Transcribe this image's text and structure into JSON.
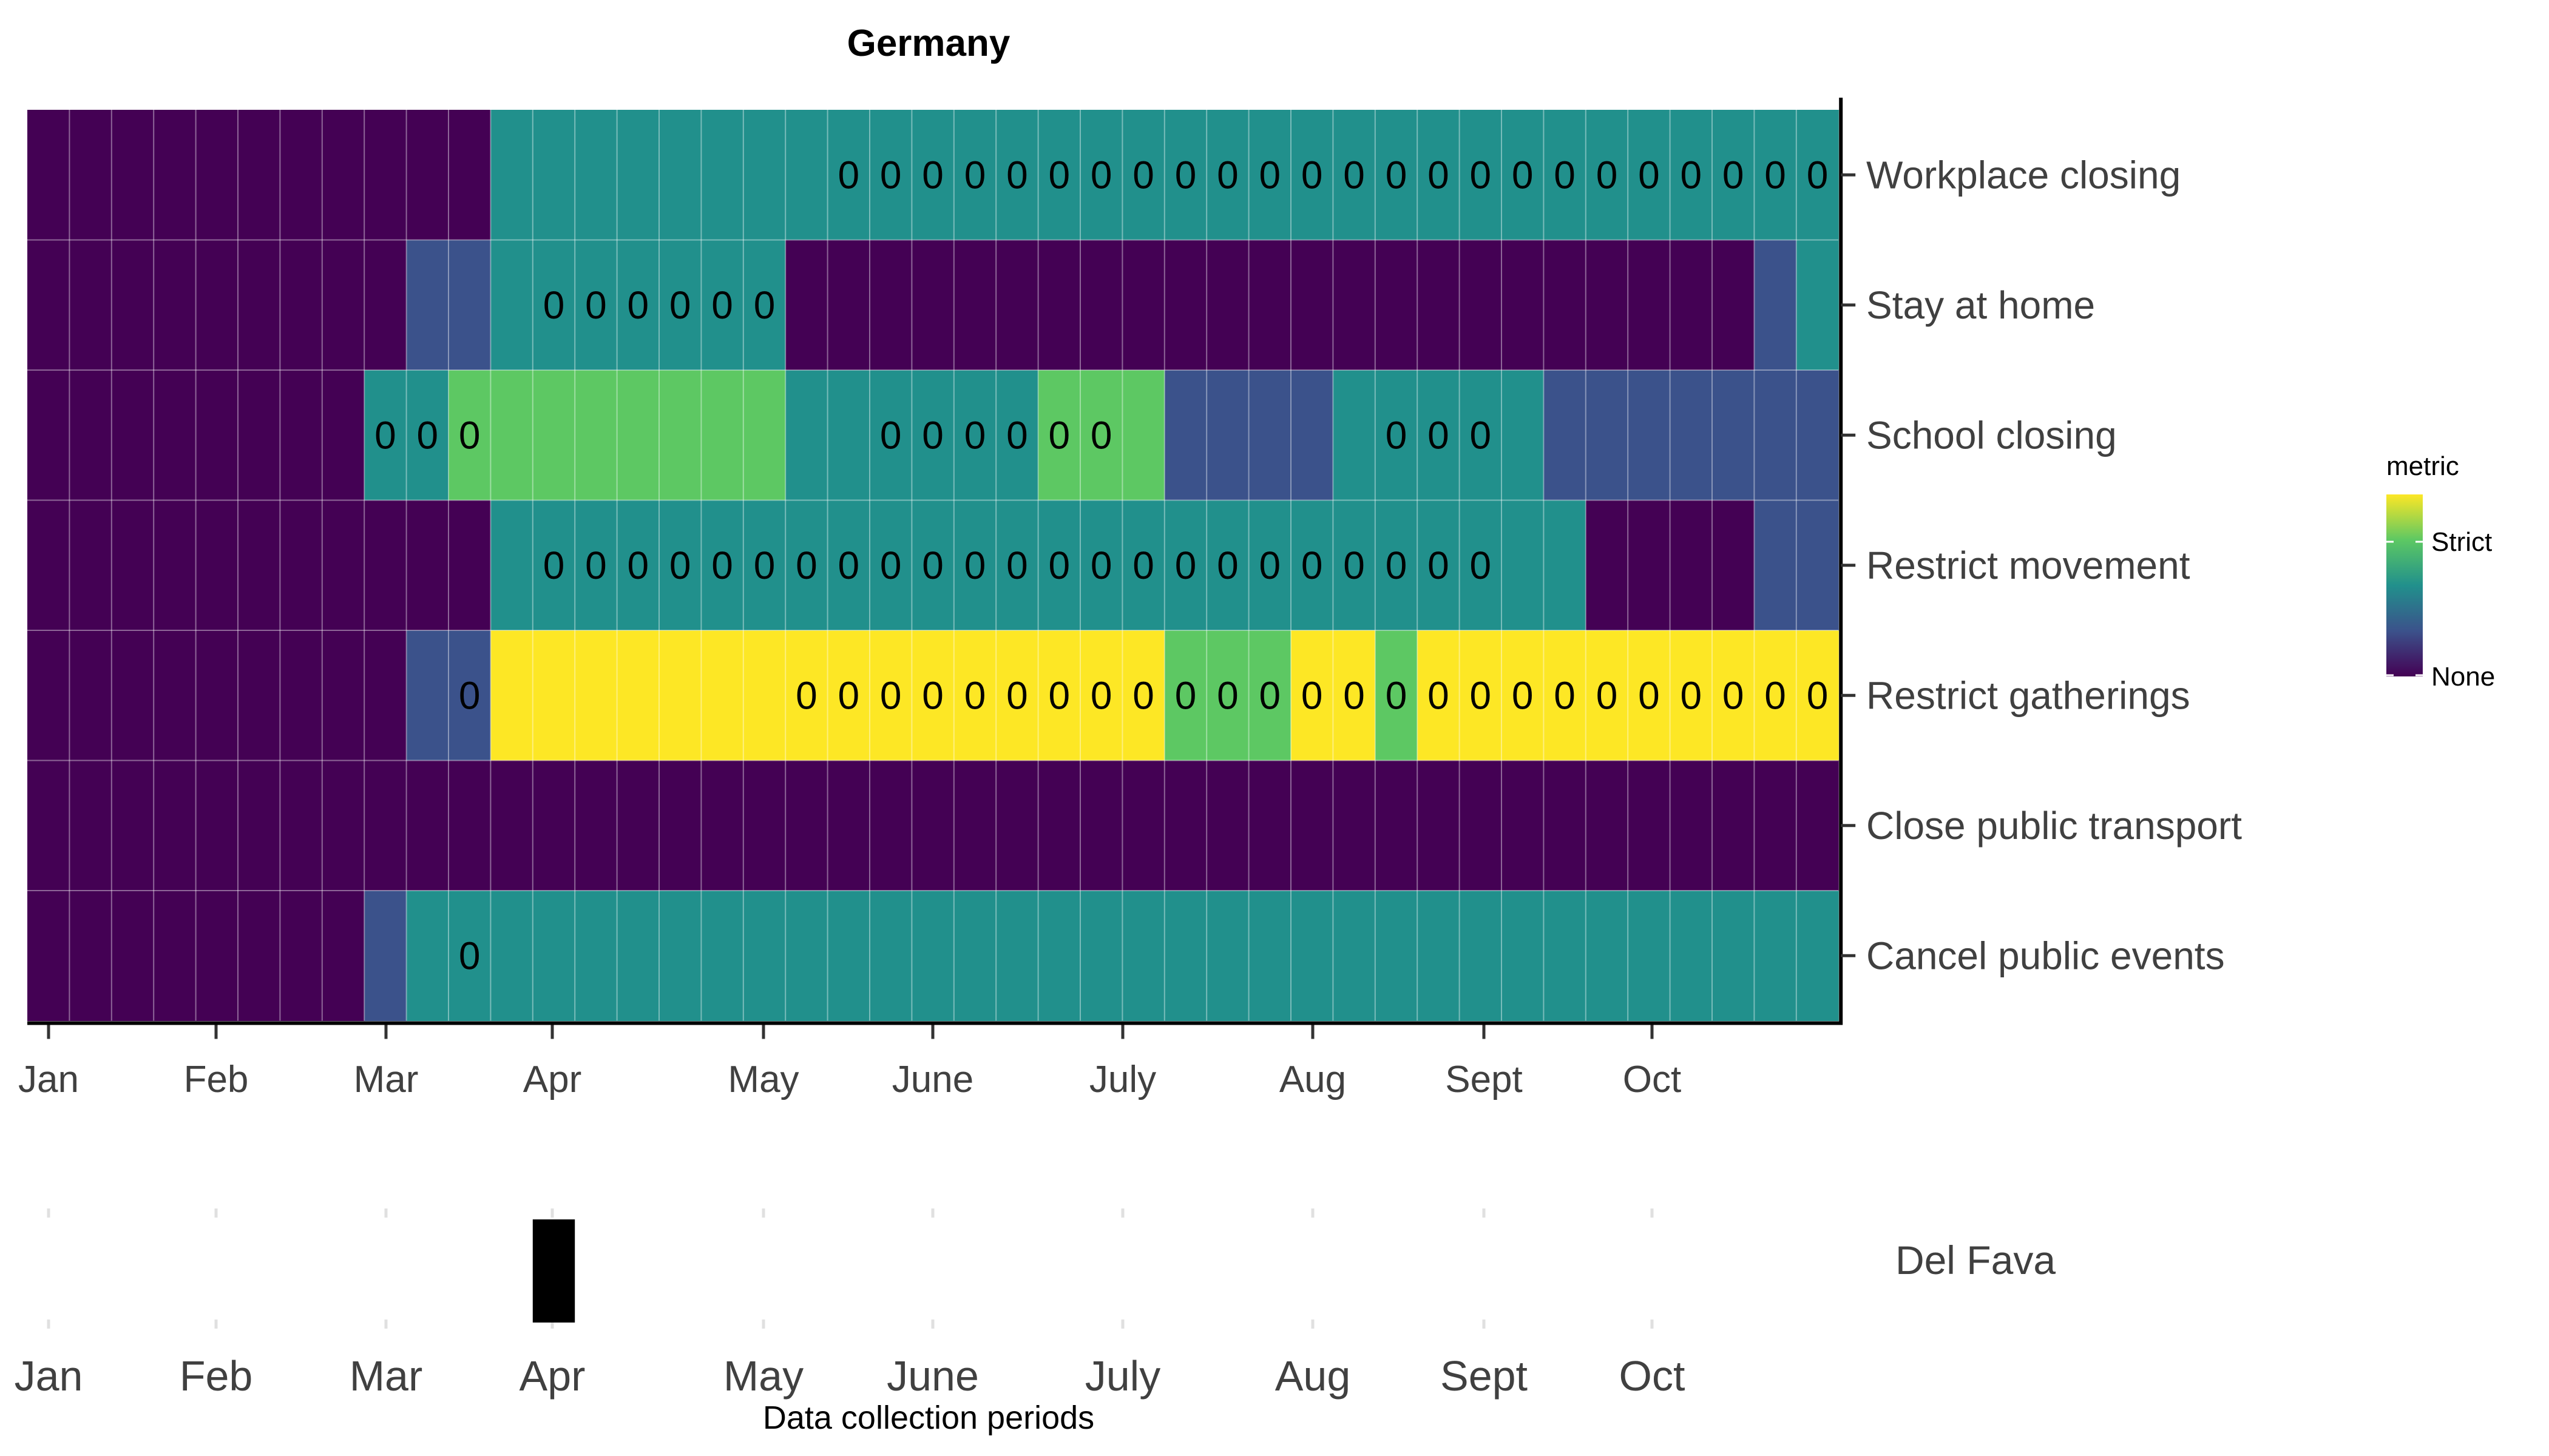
{
  "chart_data": [
    {
      "type": "heatmap",
      "title": "Germany",
      "x_tick_labels": [
        "Jan",
        "Feb",
        "Mar",
        "Apr",
        "May",
        "June",
        "July",
        "Aug",
        "Sept",
        "Oct"
      ],
      "rows": [
        "Workplace closing",
        "Stay at home",
        "School closing",
        "Restrict movement",
        "Restrict gatherings",
        "Close public transport",
        "Cancel public events"
      ],
      "level_colors": [
        "#440154",
        "#3B528B",
        "#21908C",
        "#5DC863",
        "#FDE725"
      ],
      "levels": [
        [
          0,
          0,
          0,
          0,
          0,
          0,
          0,
          0,
          0,
          0,
          0,
          2,
          2,
          2,
          2,
          2,
          2,
          2,
          2,
          2,
          2,
          2,
          2,
          2,
          2,
          2,
          2,
          2,
          2,
          2,
          2,
          2,
          2,
          2,
          2,
          2,
          2,
          2,
          2,
          2,
          2,
          2,
          2
        ],
        [
          0,
          0,
          0,
          0,
          0,
          0,
          0,
          0,
          0,
          1,
          1,
          2,
          2,
          2,
          2,
          2,
          2,
          2,
          0,
          0,
          0,
          0,
          0,
          0,
          0,
          0,
          0,
          0,
          0,
          0,
          0,
          0,
          0,
          0,
          0,
          0,
          0,
          0,
          0,
          0,
          0,
          1,
          2
        ],
        [
          0,
          0,
          0,
          0,
          0,
          0,
          0,
          0,
          2,
          2,
          3,
          3,
          3,
          3,
          3,
          3,
          3,
          3,
          2,
          2,
          2,
          2,
          2,
          2,
          3,
          3,
          3,
          1,
          1,
          1,
          1,
          2,
          2,
          2,
          2,
          2,
          1,
          1,
          1,
          1,
          1,
          1,
          1
        ],
        [
          0,
          0,
          0,
          0,
          0,
          0,
          0,
          0,
          0,
          0,
          0,
          2,
          2,
          2,
          2,
          2,
          2,
          2,
          2,
          2,
          2,
          2,
          2,
          2,
          2,
          2,
          2,
          2,
          2,
          2,
          2,
          2,
          2,
          2,
          2,
          2,
          2,
          0,
          0,
          0,
          0,
          1,
          1
        ],
        [
          0,
          0,
          0,
          0,
          0,
          0,
          0,
          0,
          0,
          1,
          1,
          4,
          4,
          4,
          4,
          4,
          4,
          4,
          4,
          4,
          4,
          4,
          4,
          4,
          4,
          4,
          4,
          3,
          3,
          3,
          4,
          4,
          3,
          4,
          4,
          4,
          4,
          4,
          4,
          4,
          4,
          4,
          4
        ],
        [
          0,
          0,
          0,
          0,
          0,
          0,
          0,
          0,
          0,
          0,
          0,
          0,
          0,
          0,
          0,
          0,
          0,
          0,
          0,
          0,
          0,
          0,
          0,
          0,
          0,
          0,
          0,
          0,
          0,
          0,
          0,
          0,
          0,
          0,
          0,
          0,
          0,
          0,
          0,
          0,
          0,
          0,
          0
        ],
        [
          0,
          0,
          0,
          0,
          0,
          0,
          0,
          0,
          1,
          2,
          2,
          2,
          2,
          2,
          2,
          2,
          2,
          2,
          2,
          2,
          2,
          2,
          2,
          2,
          2,
          2,
          2,
          2,
          2,
          2,
          2,
          2,
          2,
          2,
          2,
          2,
          2,
          2,
          2,
          2,
          2,
          2,
          2
        ]
      ],
      "zero_annotations": [
        {
          "row": 0,
          "columns": [
            19,
            20,
            21,
            22,
            23,
            24,
            25,
            26,
            27,
            28,
            29,
            30,
            31,
            32,
            33,
            34,
            35,
            36,
            37,
            38,
            39,
            40,
            41,
            42
          ]
        },
        {
          "row": 1,
          "columns": [
            12,
            13,
            14,
            15,
            16,
            17
          ]
        },
        {
          "row": 2,
          "columns": [
            8,
            9,
            10,
            20,
            21,
            22,
            23,
            24,
            25,
            32,
            33,
            34
          ]
        },
        {
          "row": 3,
          "columns": [
            12,
            13,
            14,
            15,
            16,
            17,
            18,
            19,
            20,
            21,
            22,
            23,
            24,
            25,
            26,
            27,
            28,
            29,
            30,
            31,
            32,
            33,
            34
          ]
        },
        {
          "row": 4,
          "columns": [
            10,
            18,
            19,
            20,
            21,
            22,
            23,
            24,
            25,
            26,
            27,
            28,
            29,
            30,
            31,
            32,
            33,
            34,
            35,
            36,
            37,
            38,
            39,
            40,
            41,
            42
          ]
        },
        {
          "row": 6,
          "columns": [
            10
          ]
        }
      ],
      "legend": {
        "title": "metric",
        "max_label": "Strict",
        "min_label": "None",
        "placement": "right"
      },
      "grid": true
    },
    {
      "type": "bar",
      "x_tick_labels": [
        "Jan",
        "Feb",
        "Mar",
        "Apr",
        "May",
        "June",
        "July",
        "Aug",
        "Sept",
        "Oct"
      ],
      "xlabel": "Data collection periods",
      "series": [
        {
          "name": "Del Fava",
          "periods": [
            {
              "start_week": 12,
              "end_week": 13
            }
          ]
        }
      ]
    }
  ]
}
